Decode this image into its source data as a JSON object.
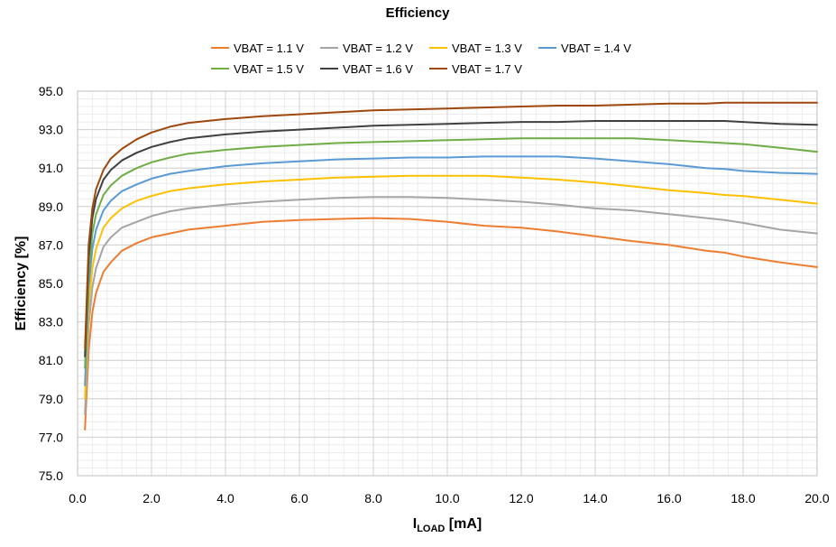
{
  "chart_data": {
    "type": "line",
    "title": "Efficiency",
    "xlabel_main": "I",
    "xlabel_sub": "LOAD",
    "xlabel_unit": " [mA]",
    "ylabel": "Efficiency [%]",
    "xlim": [
      0,
      20
    ],
    "ylim": [
      75,
      95
    ],
    "xticks": [
      "0.0",
      "2.0",
      "4.0",
      "6.0",
      "8.0",
      "10.0",
      "12.0",
      "14.0",
      "16.0",
      "18.0",
      "20.0"
    ],
    "yticks": [
      "75.0",
      "77.0",
      "79.0",
      "81.0",
      "83.0",
      "85.0",
      "87.0",
      "89.0",
      "91.0",
      "93.0",
      "95.0"
    ],
    "grid": true,
    "legend_position": "top",
    "x": [
      0.2,
      0.3,
      0.4,
      0.5,
      0.7,
      0.9,
      1.2,
      1.6,
      2.0,
      2.5,
      3.0,
      4.0,
      5.0,
      6.0,
      7.0,
      8.0,
      9.0,
      10.0,
      11.0,
      12.0,
      13.0,
      14.0,
      15.0,
      16.0,
      17.0,
      17.5,
      18.0,
      19.0,
      20.0
    ],
    "series": [
      {
        "name": "VBAT = 1.1 V",
        "color": "#ED7D31",
        "values": [
          77.4,
          81.5,
          83.5,
          84.5,
          85.6,
          86.1,
          86.7,
          87.1,
          87.4,
          87.6,
          87.8,
          88.0,
          88.2,
          88.3,
          88.35,
          88.4,
          88.35,
          88.2,
          88.0,
          87.9,
          87.7,
          87.45,
          87.2,
          87.0,
          86.7,
          86.6,
          86.4,
          86.1,
          85.85
        ]
      },
      {
        "name": "VBAT = 1.2 V",
        "color": "#A5A5A5",
        "values": [
          78.2,
          82.8,
          84.8,
          85.8,
          86.9,
          87.4,
          87.9,
          88.2,
          88.5,
          88.75,
          88.9,
          89.1,
          89.25,
          89.35,
          89.45,
          89.5,
          89.5,
          89.45,
          89.35,
          89.25,
          89.1,
          88.9,
          88.8,
          88.6,
          88.4,
          88.3,
          88.15,
          87.8,
          87.6
        ]
      },
      {
        "name": "VBAT = 1.3 V",
        "color": "#FFC000",
        "values": [
          79.0,
          83.8,
          85.8,
          86.8,
          87.9,
          88.4,
          88.9,
          89.3,
          89.55,
          89.8,
          89.95,
          90.15,
          90.3,
          90.4,
          90.5,
          90.55,
          90.6,
          90.6,
          90.6,
          90.5,
          90.4,
          90.25,
          90.05,
          89.85,
          89.7,
          89.6,
          89.55,
          89.35,
          89.15
        ]
      },
      {
        "name": "VBAT = 1.4 V",
        "color": "#5B9BD5",
        "values": [
          79.7,
          84.8,
          86.8,
          87.8,
          88.8,
          89.3,
          89.8,
          90.15,
          90.45,
          90.7,
          90.85,
          91.1,
          91.25,
          91.35,
          91.45,
          91.5,
          91.55,
          91.55,
          91.6,
          91.6,
          91.6,
          91.5,
          91.35,
          91.2,
          91.0,
          90.95,
          90.85,
          90.75,
          90.7
        ]
      },
      {
        "name": "VBAT = 1.5 V",
        "color": "#70AD47",
        "values": [
          80.6,
          85.6,
          87.6,
          88.6,
          89.6,
          90.1,
          90.6,
          91.0,
          91.3,
          91.55,
          91.75,
          91.95,
          92.1,
          92.2,
          92.3,
          92.35,
          92.4,
          92.45,
          92.5,
          92.55,
          92.55,
          92.55,
          92.55,
          92.45,
          92.35,
          92.3,
          92.25,
          92.05,
          91.85
        ]
      },
      {
        "name": "VBAT = 1.6 V",
        "color": "#404040",
        "values": [
          81.2,
          86.4,
          88.4,
          89.4,
          90.4,
          90.9,
          91.4,
          91.8,
          92.1,
          92.35,
          92.55,
          92.75,
          92.9,
          93.0,
          93.1,
          93.2,
          93.25,
          93.3,
          93.35,
          93.4,
          93.4,
          93.45,
          93.45,
          93.45,
          93.45,
          93.45,
          93.4,
          93.3,
          93.25
        ]
      },
      {
        "name": "VBAT = 1.7 V",
        "color": "#9E480E",
        "values": [
          81.6,
          87.0,
          88.9,
          89.9,
          90.9,
          91.5,
          92.0,
          92.5,
          92.85,
          93.15,
          93.35,
          93.55,
          93.7,
          93.8,
          93.9,
          94.0,
          94.05,
          94.1,
          94.15,
          94.2,
          94.25,
          94.25,
          94.3,
          94.35,
          94.35,
          94.4,
          94.4,
          94.4,
          94.4
        ]
      }
    ]
  }
}
